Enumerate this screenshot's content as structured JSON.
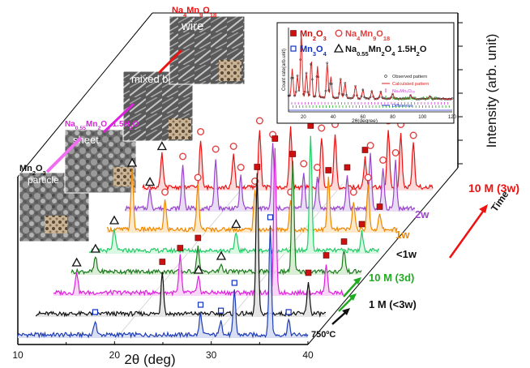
{
  "chart_data": {
    "type": "line",
    "xlabel": "2θ (deg)",
    "ylabel": "Intensity (arb. unit)",
    "xlim": [
      10,
      40
    ],
    "x_ticks": [
      "10",
      "20",
      "30",
      "40"
    ],
    "legend": {
      "position": "top-right",
      "entries": [
        {
          "symbol": "filled-square",
          "color": "#cc1010",
          "sub": [
            "Mn",
            "2",
            "O",
            "3"
          ]
        },
        {
          "symbol": "open-circle",
          "color": "#e04040",
          "sub": [
            "Na",
            "4",
            "Mn",
            "9",
            "O",
            "18"
          ]
        },
        {
          "symbol": "open-square",
          "color": "#1030c0",
          "sub": [
            "Mn",
            "3",
            "O",
            "4"
          ]
        },
        {
          "symbol": "open-triangle",
          "color": "#111111",
          "sub": [
            "Na",
            "0.55",
            "Mn",
            "2",
            "O",
            "4",
            " 1.5H",
            "2",
            "O"
          ]
        }
      ]
    },
    "inset": {
      "ylabel": "Count rate(arb.unit)",
      "xlabel": "2θ(degree)",
      "x_ticks": [
        "20",
        "40",
        "60",
        "80",
        "100",
        "120"
      ],
      "legend": [
        "Observed pattern",
        "Calculated pattern",
        "Na₄Mn₉O₁₈",
        "Na₀.₅₅Mn₂O₄ · 1.5H₂O",
        "Difference"
      ]
    },
    "series": [
      {
        "name": "750°C",
        "color": "#1e3cb4",
        "fill": "#d4dcf4",
        "peaks": [
          [
            18.0,
            20,
            "Mn3O4"
          ],
          [
            28.9,
            30,
            "Mn3O4"
          ],
          [
            31.0,
            22,
            "Mn3O4"
          ],
          [
            32.4,
            60,
            "Mn3O4"
          ],
          [
            36.1,
            150,
            "Mn3O4"
          ],
          [
            38.0,
            20,
            "Mn3O4"
          ]
        ]
      },
      {
        "name": "1 M (<3w)",
        "color": "#111111",
        "fill": "#e2e2e2",
        "peaks": [
          [
            23.1,
            60,
            "Mn2O3"
          ],
          [
            32.9,
            190,
            "Mn2O3"
          ],
          [
            38.2,
            45,
            "Mn2O3"
          ]
        ]
      },
      {
        "name": "10 M (3d)",
        "color": "#dd22dd",
        "fill": "#f8d0f6",
        "peaks": [
          [
            12.4,
            30,
            "birnessite"
          ],
          [
            23.1,
            50,
            "Mn2O3"
          ],
          [
            25.0,
            20,
            "birnessite"
          ],
          [
            32.9,
            200,
            "Mn2O3"
          ],
          [
            38.2,
            40,
            "Mn2O3"
          ]
        ]
      },
      {
        "name": "<1w",
        "color": "#1e7a1e",
        "fill": "#d6ecd0",
        "peaks": [
          [
            12.5,
            20,
            "birnessite"
          ],
          [
            23.1,
            35,
            "Mn2O3"
          ],
          [
            25.5,
            10,
            "birnessite"
          ],
          [
            32.9,
            150,
            "Mn2O3"
          ],
          [
            38.2,
            30,
            "Mn2O3"
          ]
        ]
      },
      {
        "name": "1w",
        "color": "#22cc66",
        "fill": "#d6f8e0",
        "peaks": [
          [
            12.6,
            30,
            "birnessite"
          ],
          [
            25.2,
            25,
            "birnessite"
          ],
          [
            32.9,
            160,
            "Mn2O3"
          ],
          [
            38.2,
            25,
            "Mn2O3"
          ]
        ]
      },
      {
        "name": "2w",
        "color": "#ee8800",
        "fill": "#fde5c4",
        "peaks": [
          [
            12.6,
            80,
            "birnessite"
          ],
          [
            16.0,
            40,
            "Na4Mn9O18"
          ],
          [
            19.4,
            60,
            "Na4Mn9O18"
          ],
          [
            25.3,
            55,
            "Na4Mn9O18"
          ],
          [
            29.0,
            40,
            "Na4Mn9O18"
          ],
          [
            32.9,
            70,
            "Mn2O3"
          ],
          [
            35.5,
            40,
            "Na4Mn9O18"
          ],
          [
            37.0,
            60,
            "Na4Mn9O18"
          ],
          [
            38.2,
            20,
            "Mn2O3"
          ]
        ]
      },
      {
        "name": "10 M (3w)",
        "color": "#9a44cc",
        "fill": "#e7d8f4",
        "peaks": [
          [
            12.6,
            25,
            "birnessite"
          ],
          [
            16.0,
            60,
            "Na4Mn9O18"
          ],
          [
            19.4,
            70,
            "Na4Mn9O18"
          ],
          [
            22.0,
            45,
            "Na4Mn9O18"
          ],
          [
            25.3,
            90,
            "Na4Mn9O18"
          ],
          [
            28.5,
            50,
            "Na4Mn9O18"
          ],
          [
            29.9,
            45,
            "Na4Mn9O18"
          ],
          [
            33.0,
            45,
            "Mn2O3"
          ],
          [
            35.4,
            75,
            "Na4Mn9O18"
          ],
          [
            36.7,
            55,
            "Na4Mn9O18"
          ],
          [
            38.0,
            65,
            "Na4Mn9O18"
          ]
        ]
      },
      {
        "name": "",
        "color": "#ee1111",
        "fill": "#fdd6d6",
        "peaks": [
          [
            12.0,
            45,
            "birnessite"
          ],
          [
            16.0,
            65,
            "Na4Mn9O18"
          ],
          [
            19.4,
            45,
            "Na4Mn9O18"
          ],
          [
            22.1,
            80,
            "Na4Mn9O18"
          ],
          [
            25.3,
            85,
            "Na4Mn9O18"
          ],
          [
            28.5,
            70,
            "Na4Mn9O18"
          ],
          [
            29.9,
            75,
            "Na4Mn9O18"
          ],
          [
            33.0,
            40,
            "Mn2O3"
          ],
          [
            35.4,
            80,
            "Na4Mn9O18"
          ],
          [
            36.7,
            75,
            "Na4Mn9O18"
          ],
          [
            38.0,
            60,
            "Na4Mn9O18"
          ]
        ]
      }
    ],
    "stage_labels": [
      {
        "text": "750ºC",
        "color": "#111111"
      },
      {
        "text": "1 M (<3w)",
        "color": "#111111"
      },
      {
        "text": "10 M (3d)",
        "color": "#22aa22"
      },
      {
        "text": "<1w",
        "color": "#111111"
      },
      {
        "text": "1w",
        "color": "#ee8800"
      },
      {
        "text": "2w",
        "color": "#9a44cc"
      },
      {
        "text": "10 M (3w)",
        "color": "#ee1111"
      },
      {
        "text": "Time",
        "color": "#111111"
      }
    ],
    "morphology": [
      {
        "phase": "Mn2O3",
        "phase_sub": [
          "Mn",
          "2",
          "O",
          "3"
        ],
        "shape": "particle",
        "label_color": "#111111"
      },
      {
        "phase": "Na0.55Mn2O4 1.5H2O",
        "phase_sub": [
          "Na",
          "0.55",
          "Mn",
          "2",
          "O",
          "4",
          " 1.5H",
          "2",
          "O"
        ],
        "shape": "sheet",
        "label_color": "#dd22dd"
      },
      {
        "phase": "",
        "phase_sub": [],
        "shape": "mixed belt",
        "label_color": "#9a44cc"
      },
      {
        "phase": "Na4Mn9O18",
        "phase_sub": [
          "Na",
          "4",
          "Mn",
          "9",
          "O",
          "18"
        ],
        "shape": "wire",
        "label_color": "#ee1111"
      }
    ]
  }
}
